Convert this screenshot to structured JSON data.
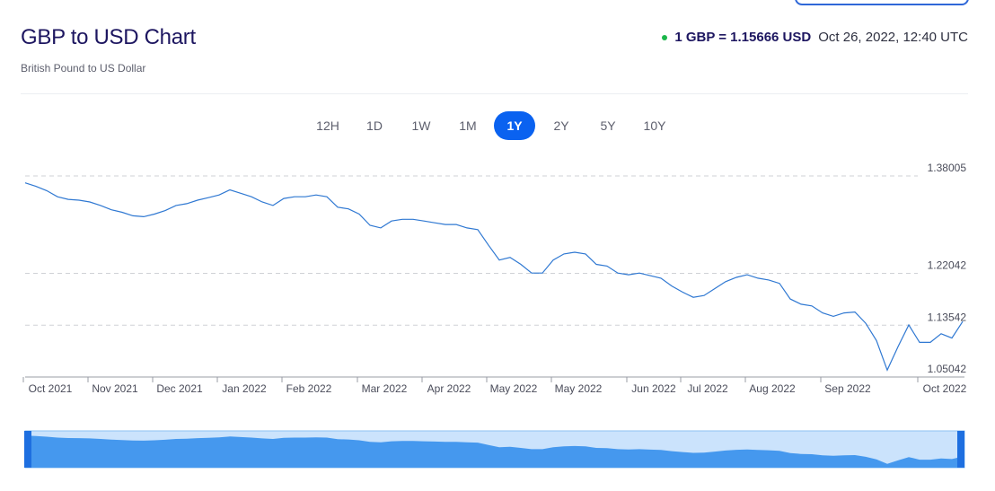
{
  "header": {
    "title": "GBP to USD Chart",
    "subtitle": "British Pound to US Dollar",
    "rate": "1 GBP = 1.15666 USD",
    "timestamp": "Oct 26, 2022, 12:40 UTC"
  },
  "ranges": {
    "options": [
      "12H",
      "1D",
      "1W",
      "1M",
      "1Y",
      "2Y",
      "5Y",
      "10Y"
    ],
    "selected": "1Y"
  },
  "chart_data": {
    "type": "line",
    "categories": [
      null,
      null,
      "Oct 2021",
      null,
      null,
      null,
      null,
      null,
      "Nov 2021",
      null,
      null,
      null,
      null,
      null,
      "Dec 2021",
      null,
      null,
      null,
      null,
      null,
      "Jan 2022",
      null,
      null,
      null,
      null,
      null,
      "Feb 2022",
      null,
      null,
      null,
      null,
      null,
      null,
      "Mar 2022",
      null,
      null,
      null,
      null,
      null,
      "Apr 2022",
      null,
      null,
      null,
      null,
      null,
      "May 2022",
      null,
      null,
      null,
      null,
      null,
      "May 2022",
      null,
      null,
      null,
      null,
      null,
      null,
      "Jun 2022",
      null,
      null,
      null,
      null,
      "Jul 2022",
      null,
      null,
      null,
      null,
      null,
      "Aug 2022",
      null,
      null,
      null,
      null,
      null,
      null,
      "Sep 2022",
      null,
      null,
      null,
      null,
      null,
      null,
      null,
      null,
      "Oct 2022",
      null,
      null
    ],
    "series": [
      {
        "color": "#2f78d2",
        "values": [
          1.3687,
          1.363,
          1.3559,
          1.3459,
          1.3417,
          1.3403,
          1.3374,
          1.3317,
          1.3246,
          1.3204,
          1.3147,
          1.3133,
          1.3175,
          1.3232,
          1.3317,
          1.3346,
          1.3403,
          1.3445,
          1.3488,
          1.3573,
          1.3516,
          1.3459,
          1.3374,
          1.3317,
          1.3431,
          1.3459,
          1.3459,
          1.3488,
          1.3459,
          1.3289,
          1.3261,
          1.3175,
          1.2991,
          1.2948,
          1.3062,
          1.309,
          1.309,
          1.3062,
          1.3033,
          1.3005,
          1.3005,
          1.2948,
          1.292,
          1.2664,
          1.2422,
          1.2465,
          1.2351,
          1.2209,
          1.2209,
          1.2422,
          1.2522,
          1.255,
          1.2522,
          1.2351,
          1.2323,
          1.2209,
          1.2181,
          1.2209,
          1.2166,
          1.2124,
          1.1996,
          1.1896,
          1.1811,
          1.184,
          1.1953,
          1.2067,
          1.2138,
          1.2181,
          1.2124,
          1.2095,
          1.2039,
          1.1783,
          1.1698,
          1.1669,
          1.1555,
          1.1499,
          1.1555,
          1.157,
          1.1385,
          1.1101,
          1.0618,
          1.1001,
          1.1357,
          1.1072,
          1.1072,
          1.1214,
          1.1143,
          1.1413
        ]
      }
    ],
    "ylim": [
      1.05042,
      1.38005
    ],
    "yticks": [
      1.38005,
      1.22042,
      1.13542,
      1.05042
    ],
    "grid": true
  }
}
